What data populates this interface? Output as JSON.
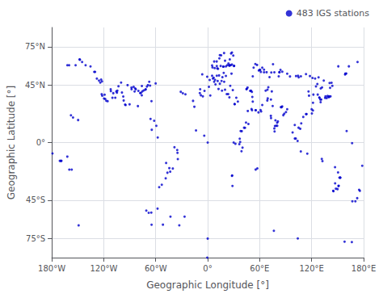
{
  "chart_data": {
    "type": "scatter",
    "xlabel": "Geographic Longitude [°]",
    "ylabel": "Geographic Latitude [°]",
    "xlim": [
      -180,
      180
    ],
    "ylim": [
      -90,
      90
    ],
    "xticks": [
      {
        "value": -180,
        "label": "180°W"
      },
      {
        "value": -120,
        "label": "120°W"
      },
      {
        "value": -60,
        "label": "60°W"
      },
      {
        "value": 0,
        "label": "0°"
      },
      {
        "value": 60,
        "label": "60°E"
      },
      {
        "value": 120,
        "label": "120°E"
      },
      {
        "value": 180,
        "label": "180°E"
      }
    ],
    "yticks": [
      {
        "value": -75,
        "label": "75°S"
      },
      {
        "value": -45,
        "label": "45°S"
      },
      {
        "value": 0,
        "label": "0°"
      },
      {
        "value": 45,
        "label": "45°N"
      },
      {
        "value": 75,
        "label": "75°N"
      }
    ],
    "grid": true,
    "legend": "upper right",
    "marker": "circle",
    "x": [
      -157.9,
      -155.5,
      -149.6,
      -147.5,
      -135.3,
      -130.0,
      -123.0,
      -122.4,
      -121.8,
      -119.7,
      -118.3,
      -117.1,
      -115.5,
      -111.8,
      -110.0,
      -106.7,
      -104.8,
      -104.3,
      -100.0,
      -97.5,
      -97.0,
      -94.8,
      -90.2,
      -87.9,
      -84.4,
      -83.7,
      -80.6,
      -77.1,
      -76.1,
      -75.6,
      -71.5,
      -70.2,
      -66.0,
      -64.9,
      -64.6,
      -61.8,
      -60.1,
      -59.3,
      -57.7,
      -56.0,
      -53.0,
      -51.7,
      -48.5,
      -48.0,
      -46.5,
      -44.3,
      -43.3,
      -40.3,
      -38.4,
      -35.2,
      -34.9,
      -34.5,
      -32.8,
      -31.1,
      -28.7,
      -25.7,
      -16.9,
      -15.4,
      -13.5,
      -9.1,
      -8.7,
      -7.9,
      -6.3,
      -5.6,
      -4.0,
      -3.7,
      -0.6,
      0.0,
      1.4,
      2.3,
      3.0,
      5.1,
      6.0,
      6.9,
      7.5,
      8.4,
      9.0,
      10.5,
      11.0,
      11.5,
      12.5,
      13.1,
      14.0,
      15.0,
      16.0,
      16.5,
      17.0,
      18.1,
      18.5,
      19.0,
      20.0,
      21.0,
      22.0,
      23.7,
      24.0,
      24.9,
      25.0,
      25.5,
      26.0,
      27.5,
      28.0,
      28.3,
      28.6,
      29.0,
      30.0,
      30.3,
      31.0,
      31.2,
      32.0,
      33.0,
      34.8,
      36.5,
      37.0,
      37.5,
      38.0,
      39.0,
      39.3,
      40.2,
      42.0,
      43.1,
      44.2,
      46.3,
      47.0,
      50.6,
      51.2,
      51.5,
      52.0,
      55.3,
      55.4,
      55.5,
      57.3,
      58.6,
      60.0,
      61.0,
      61.7,
      63.0,
      65.0,
      66.9,
      68.8,
      69.0,
      69.3,
      70.0,
      71.4,
      72.9,
      73.0,
      73.1,
      74.0,
      75.0,
      76.9,
      77.2,
      77.6,
      78.2,
      79.0,
      80.2,
      80.3,
      81.0,
      82.0,
      84.5,
      85.3,
      86.0,
      87.3,
      88.4,
      90.4,
      91.8,
      98.0,
      100.5,
      100.6,
      101.7,
      103.8,
      104.9,
      106.8,
      107.5,
      108.0,
      110.3,
      113.5,
      114.2,
      115.0,
      116.4,
      117.0,
      120.0,
      120.3,
      121.5,
      121.6,
      122.0,
      125.0,
      126.6,
      127.0,
      128.9,
      129.0,
      130.0,
      130.4,
      131.1,
      131.7,
      132.5,
      135.5,
      136.0,
      137.4,
      138.4,
      139.5,
      140.1,
      140.1,
      141.3,
      141.8,
      143.9,
      144.9,
      145.2,
      147.0,
      147.1,
      148.0,
      149.9,
      150.5,
      151.0,
      151.2,
      152.1,
      152.9,
      153.1,
      158.9,
      160.4,
      166.7,
      167.0,
      170.5,
      172.6,
      174.8,
      175.7,
      178.4,
      -179.2,
      -170.7,
      -169.5,
      -168.9,
      -162.1,
      -159.8,
      -157.0,
      -64.8,
      -70.9,
      -68.1,
      -65.1,
      -57.9,
      -43.0,
      -26.7,
      -0.5,
      0.0,
      76.4,
      104.0,
      158.0,
      166.4,
      -149.0,
      -162.0,
      -160.0,
      -152.5,
      -148.0,
      -145.0,
      -141.0,
      -131.0,
      -128.0,
      -125.5,
      -124.0,
      -122.0,
      -119.0,
      -112.0,
      -109.0,
      -105.5,
      -103.0,
      -99.0,
      -95.4,
      -92.5,
      -88.0,
      -85.5,
      -83.0,
      -80.0,
      -78.0,
      -76.0,
      -74.0,
      -72.0,
      -69.0,
      -67.5,
      -66.5,
      20.0,
      25.5,
      27.0,
      28.0,
      29.5,
      18.9,
      15.5,
      14.0,
      13.5,
      10.4,
      5.5,
      5.1,
      7.5,
      8.0,
      10.5,
      11.9,
      18.0,
      21.0,
      22.5,
      25.0,
      26.5,
      28.0,
      30.5,
      45.0,
      44.8,
      46.0,
      49.0,
      50.0,
      51.0,
      52.0,
      53.0,
      55.0,
      57.0,
      59.0,
      60.6,
      61.4,
      63.0,
      65.0,
      68.0,
      73.4,
      75.4,
      77.0,
      82.9,
      82.7,
      84.0,
      86.1,
      91.8,
      95.0,
      102.0,
      104.3,
      105.0,
      107.6,
      113.5,
      118.0,
      121.0,
      124.0,
      128.0,
      130.5,
      132.0,
      134.0,
      140.7,
      143.0,
      150.8,
      158.6,
      160.0,
      163.0,
      173.0
    ],
    "series": [
      {
        "name": "483 IGS stations",
        "color": "#0000CD",
        "values": [
          21.3,
          19.6,
          17.6,
          64.8,
          59.5,
          55.3,
          49.3,
          37.8,
          36.6,
          34.4,
          34.1,
          32.7,
          32.3,
          40.2,
          35.0,
          35.1,
          39.0,
          40.6,
          46.9,
          36.0,
          32.9,
          29.3,
          29.9,
          41.7,
          39.9,
          42.3,
          28.5,
          38.8,
          36.9,
          39.9,
          41.7,
          43.7,
          18.5,
          32.4,
          10.0,
          17.1,
          46.2,
          13.1,
          3.9,
          -34.9,
          -33.0,
          -64.2,
          -28.0,
          -16.0,
          -23.6,
          -20.0,
          -22.8,
          -20.3,
          -3.7,
          -5.8,
          -8.1,
          -12.9,
          -64.7,
          39.7,
          38.5,
          37.7,
          32.6,
          28.0,
          9.5,
          38.7,
          41.7,
          37.0,
          53.3,
          36.1,
          5.4,
          40.4,
          51.5,
          0.0,
          43.6,
          48.9,
          36.8,
          52.2,
          50.1,
          50.7,
          47.5,
          49.0,
          45.5,
          52.3,
          58.0,
          48.1,
          41.9,
          52.5,
          46.0,
          59.9,
          48.2,
          40.6,
          51.1,
          59.4,
          54.5,
          47.5,
          41.3,
          52.1,
          37.9,
          37.9,
          61.8,
          60.2,
          35.3,
          65.0,
          44.4,
          53.9,
          -26.1,
          -25.7,
          -33.9,
          41.0,
          0.0,
          59.9,
          30.1,
          30.0,
          -1.0,
          35.1,
          32.1,
          -1.3,
          3.0,
          0.5,
          9.0,
          -6.8,
          8.9,
          -4.0,
          11.6,
          11.5,
          15.6,
          24.7,
          14.5,
          26.2,
          25.3,
          35.7,
          32.0,
          25.3,
          -21.1,
          25.3,
          -20.2,
          23.6,
          56.8,
          25.4,
          24.3,
          29.4,
          54.9,
          40.6,
          32.9,
          41.3,
          34.5,
          43.3,
          51.2,
          20.9,
          33.6,
          19.1,
          40.0,
          28.6,
          11.0,
          8.7,
          12.9,
          17.4,
          13.1,
          15.5,
          13.1,
          16.5,
          51.8,
          27.7,
          27.7,
          28.2,
          21.4,
          22.6,
          23.8,
          26.1,
          7.9,
          13.7,
          3.1,
          3.1,
          1.3,
          11.6,
          10.8,
          -6.9,
          15.0,
          20.0,
          22.2,
          22.3,
          -8.7,
          39.9,
          36.7,
          26.0,
          22.7,
          25.1,
          31.1,
          37.5,
          43.9,
          45.8,
          37.5,
          35.2,
          35.1,
          33.6,
          31.6,
          33.6,
          -12.8,
          -14.5,
          34.9,
          36.1,
          34.7,
          36.4,
          35.7,
          35.6,
          36.1,
          42.8,
          36.1,
          44.3,
          -37.7,
          -38.1,
          -19.3,
          -31.9,
          -36.1,
          -36.4,
          -23.4,
          -34.0,
          -33.8,
          -27.5,
          -27.4,
          -27.5,
          53.9,
          9.0,
          -0.5,
          -45.9,
          -45.9,
          -43.5,
          -36.9,
          -37.8,
          -18.2,
          -8.5,
          -14.3,
          -14.3,
          -14.3,
          -11.0,
          -21.2,
          -21.2,
          -64.3,
          -53.2,
          -54.9,
          -54.8,
          -51.7,
          -57.9,
          -57.9,
          -90.0,
          -75.1,
          -69.0,
          -75.0,
          -77.5,
          -77.8,
          -64.8,
          60.5,
          60.5,
          60.5,
          65.0,
          63.0,
          60.5,
          55.3,
          50.0,
          48.5,
          46.9,
          47.8,
          37.4,
          41.7,
          38.6,
          40.0,
          44.0,
          39.1,
          29.7,
          44.9,
          43.0,
          43.5,
          41.7,
          40.4,
          38.7,
          44.2,
          40.7,
          41.3,
          44.9,
          47.5,
          44.5,
          64.0,
          60.5,
          69.7,
          70.4,
          68.0,
          70.0,
          68.2,
          68.4,
          65.8,
          63.4,
          58.8,
          60.3,
          63.4,
          58.2,
          59.8,
          57.7,
          59.3,
          59.5,
          60.5,
          60.3,
          60.5,
          61.0,
          60.0,
          42.0,
          41.7,
          43.0,
          40.4,
          40.5,
          39.6,
          51.8,
          58.6,
          61.4,
          60.7,
          56.3,
          56.8,
          55.2,
          58.6,
          57.0,
          55.0,
          54.8,
          61.3,
          54.9,
          55.0,
          54.9,
          56.8,
          55.4,
          53.8,
          51.7,
          52.0,
          52.3,
          51.0,
          51.8,
          53.5,
          52.0,
          50.5,
          50.1,
          51.0,
          42.3,
          43.1,
          48.5,
          46.6,
          46.7,
          59.6,
          53.2,
          54.0,
          59.6,
          63.0
        ]
      }
    ]
  }
}
